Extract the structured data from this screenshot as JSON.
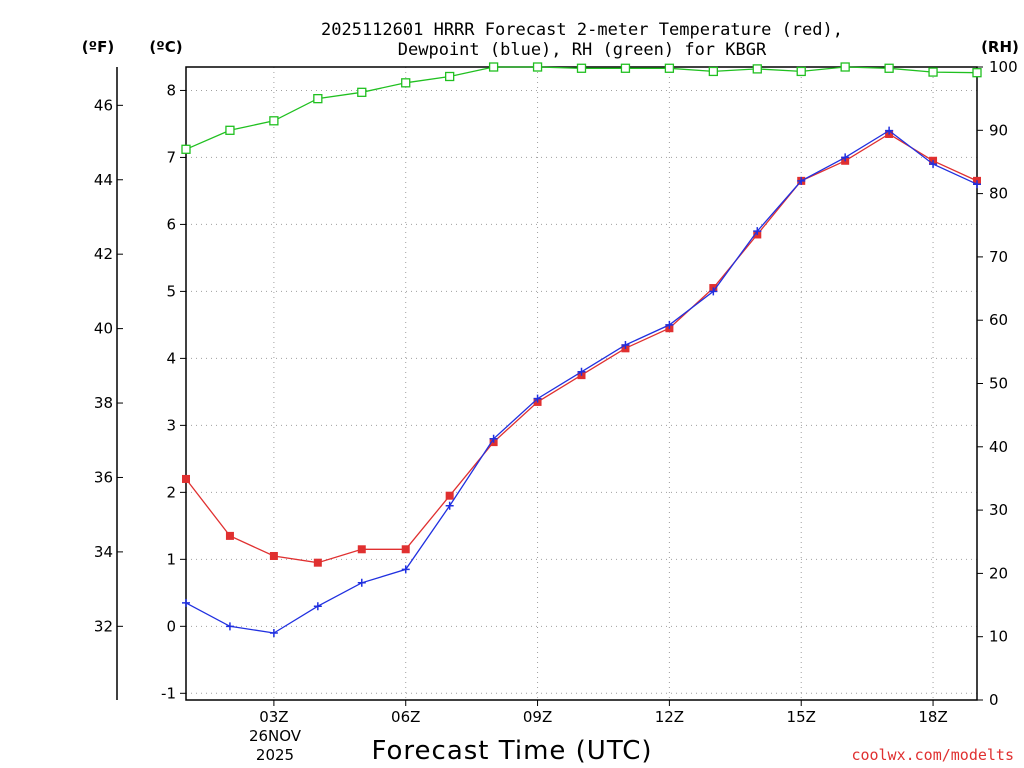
{
  "chart_data": {
    "type": "line",
    "title_line1": "2025112601 HRRR Forecast 2-meter Temperature (red),",
    "title_line2": "Dewpoint (blue), RH (green) for KBGR",
    "xlabel": "Forecast Time (UTC)",
    "credit": "coolwx.com/modelts",
    "units": {
      "left_f": "(ºF)",
      "left_c": "(ºC)",
      "right": "(RH)"
    },
    "date_label": {
      "day": "26NOV",
      "year": "2025"
    },
    "x_hours": [
      1,
      2,
      3,
      4,
      5,
      6,
      7,
      8,
      9,
      10,
      11,
      12,
      13,
      14,
      15,
      16,
      17,
      18,
      19
    ],
    "x_ticks": [
      {
        "hour": 3,
        "label": "03Z"
      },
      {
        "hour": 6,
        "label": "06Z"
      },
      {
        "hour": 9,
        "label": "09Z"
      },
      {
        "hour": 12,
        "label": "12Z"
      },
      {
        "hour": 15,
        "label": "15Z"
      },
      {
        "hour": 18,
        "label": "18Z"
      }
    ],
    "xlim": [
      1,
      19
    ],
    "celsius_ticks": [
      "-1",
      "0",
      "1",
      "2",
      "3",
      "4",
      "5",
      "6",
      "7",
      "8"
    ],
    "fahrenheit_ticks": [
      "32",
      "34",
      "36",
      "38",
      "40",
      "42",
      "44",
      "46"
    ],
    "rh_ticks": [
      "0",
      "10",
      "20",
      "30",
      "40",
      "50",
      "60",
      "70",
      "80",
      "90",
      "100"
    ],
    "ylim_c": [
      -1.1,
      8.35
    ],
    "ylim_rh": [
      0,
      100
    ],
    "series": [
      {
        "name": "Temperature",
        "axis": "C",
        "color": "#e03030",
        "marker": "square",
        "values": [
          2.2,
          1.35,
          1.05,
          0.95,
          1.15,
          1.15,
          1.95,
          2.75,
          3.35,
          3.75,
          4.15,
          4.45,
          5.05,
          5.85,
          6.65,
          6.95,
          7.35,
          6.95,
          6.65
        ]
      },
      {
        "name": "Dewpoint",
        "axis": "C",
        "color": "#2030e0",
        "marker": "plus",
        "values": [
          0.35,
          0.0,
          -0.1,
          0.3,
          0.65,
          0.85,
          1.8,
          2.8,
          3.4,
          3.8,
          4.2,
          4.5,
          5.0,
          5.9,
          6.65,
          7.0,
          7.4,
          6.9,
          6.6
        ]
      },
      {
        "name": "RH",
        "axis": "RH",
        "color": "#20c020",
        "marker": "open-square",
        "values": [
          87,
          90,
          91.5,
          95,
          96,
          97.5,
          98.5,
          100,
          100,
          99.8,
          99.8,
          99.8,
          99.3,
          99.7,
          99.3,
          100,
          99.8,
          99.2,
          99.1
        ]
      }
    ]
  }
}
